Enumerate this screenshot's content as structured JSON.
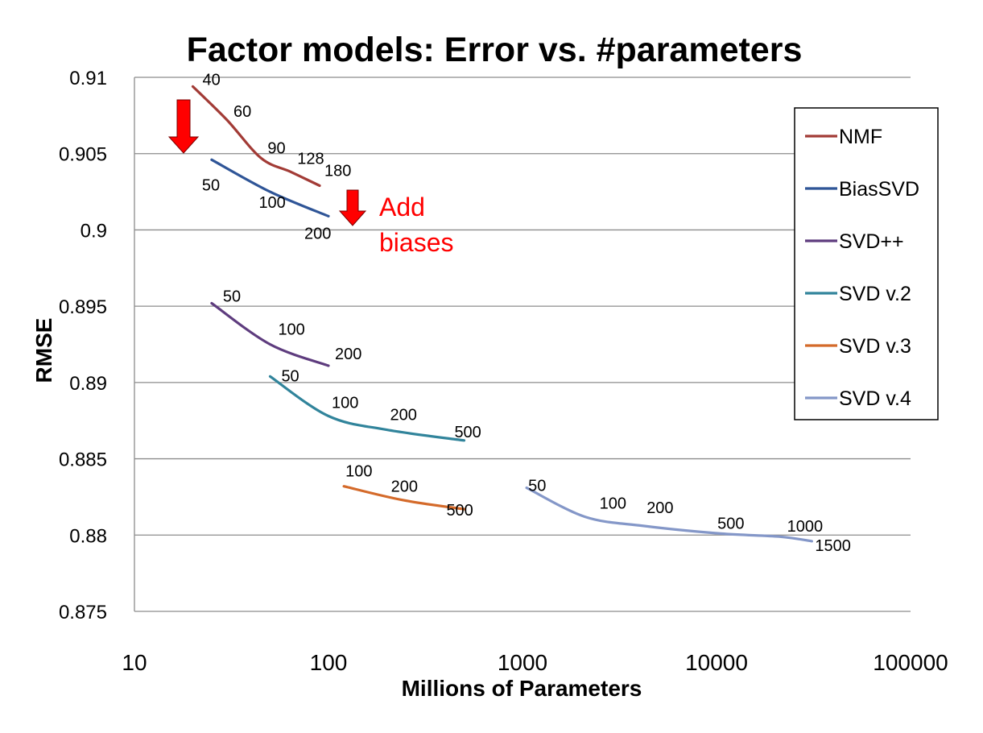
{
  "chart_data": {
    "type": "line",
    "title": "Factor models: Error vs. #parameters",
    "xlabel": "Millions of Parameters",
    "ylabel": "RMSE",
    "x_scale": "log",
    "xlim": [
      10,
      100000
    ],
    "ylim": [
      0.875,
      0.91
    ],
    "x_ticks": [
      "10",
      "100",
      "1000",
      "10000",
      "100000"
    ],
    "y_ticks": [
      "0.875",
      "0.88",
      "0.885",
      "0.89",
      "0.895",
      "0.9",
      "0.905",
      "0.91"
    ],
    "grid": "horizontal",
    "legend_position": "right",
    "series": [
      {
        "name": "NMF",
        "color": "#A23B36",
        "points": [
          {
            "x": 20,
            "y": 0.9094,
            "label": "40"
          },
          {
            "x": 30,
            "y": 0.9072,
            "label": "60"
          },
          {
            "x": 45,
            "y": 0.9047,
            "label": "90"
          },
          {
            "x": 64,
            "y": 0.9038,
            "label": "128"
          },
          {
            "x": 90,
            "y": 0.9029,
            "label": "180"
          }
        ]
      },
      {
        "name": "BiasSVD",
        "color": "#2F5597",
        "points": [
          {
            "x": 25,
            "y": 0.9046,
            "label": "50"
          },
          {
            "x": 50,
            "y": 0.9025,
            "label": "100"
          },
          {
            "x": 100,
            "y": 0.9009,
            "label": "200"
          }
        ]
      },
      {
        "name": "SVD++",
        "color": "#5E3C7E",
        "points": [
          {
            "x": 25,
            "y": 0.8952,
            "label": "50"
          },
          {
            "x": 50,
            "y": 0.8925,
            "label": "100"
          },
          {
            "x": 100,
            "y": 0.8911,
            "label": "200"
          }
        ]
      },
      {
        "name": "SVD v.2",
        "color": "#31849B",
        "points": [
          {
            "x": 50,
            "y": 0.8904,
            "label": "50"
          },
          {
            "x": 100,
            "y": 0.8878,
            "label": "100"
          },
          {
            "x": 200,
            "y": 0.8869,
            "label": "200"
          },
          {
            "x": 500,
            "y": 0.8862,
            "label": "500"
          }
        ]
      },
      {
        "name": "SVD v.3",
        "color": "#D46A2A",
        "points": [
          {
            "x": 120,
            "y": 0.8832,
            "label": "100"
          },
          {
            "x": 240,
            "y": 0.8823,
            "label": "200"
          },
          {
            "x": 500,
            "y": 0.8817,
            "label": "500"
          }
        ]
      },
      {
        "name": "SVD v.4",
        "color": "#8497C8",
        "points": [
          {
            "x": 1050,
            "y": 0.8831,
            "label": "50"
          },
          {
            "x": 2100,
            "y": 0.8812,
            "label": "100"
          },
          {
            "x": 4200,
            "y": 0.8806,
            "label": "200"
          },
          {
            "x": 10500,
            "y": 0.8801,
            "label": "500"
          },
          {
            "x": 21000,
            "y": 0.8799,
            "label": "1000"
          },
          {
            "x": 31000,
            "y": 0.8796,
            "label": "1500"
          }
        ]
      }
    ],
    "annotations": [
      {
        "text": [
          "Add",
          "biases"
        ],
        "color": "#FF0000"
      }
    ]
  }
}
